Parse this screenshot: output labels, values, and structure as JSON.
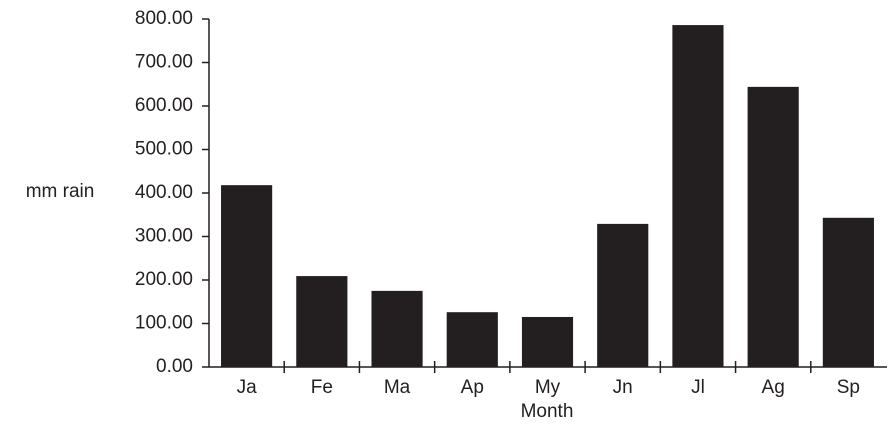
{
  "chart_data": {
    "type": "bar",
    "x_label": "Month",
    "y_label": "mm rain",
    "categories": [
      "Ja",
      "Fe",
      "Ma",
      "Ap",
      "My",
      "Jn",
      "Jl",
      "Ag",
      "Sp"
    ],
    "values": [
      418,
      209,
      175,
      126,
      115,
      329,
      786,
      644,
      343
    ],
    "color": "#231f20",
    "ylim": [
      0,
      800
    ],
    "yticks": [
      {
        "value": 0,
        "label": "0.00"
      },
      {
        "value": 100,
        "label": "100.00"
      },
      {
        "value": 200,
        "label": "200.00"
      },
      {
        "value": 300,
        "label": "300.00"
      },
      {
        "value": 400,
        "label": "400.00"
      },
      {
        "value": 500,
        "label": "500.00"
      },
      {
        "value": 600,
        "label": "600.00"
      },
      {
        "value": 700,
        "label": "700.00"
      },
      {
        "value": 800,
        "label": "800.00"
      }
    ],
    "grid": false
  }
}
